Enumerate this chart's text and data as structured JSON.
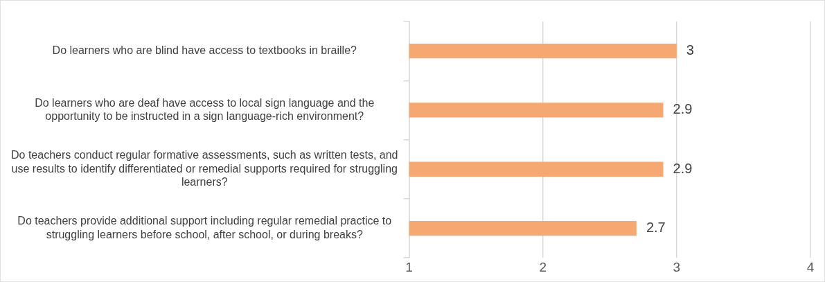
{
  "chart_data": {
    "type": "bar",
    "orientation": "horizontal",
    "categories": [
      "Do learners who are blind have access to textbooks in braille?",
      "Do learners who are deaf have access to local sign language and the opportunity to be instructed in a sign language-rich environment?",
      "Do teachers conduct regular formative assessments, such as written tests, and use results to identify differentiated or remedial supports required for struggling learners?",
      "Do teachers provide additional support including regular remedial practice to struggling learners before school, after school, or during breaks?"
    ],
    "values": [
      3,
      2.9,
      2.9,
      2.7
    ],
    "color": "#f5a872",
    "xlim": [
      1,
      4
    ],
    "xticks": [
      1,
      2,
      3,
      4
    ],
    "grid": "x",
    "data_labels": true,
    "legend": false
  }
}
